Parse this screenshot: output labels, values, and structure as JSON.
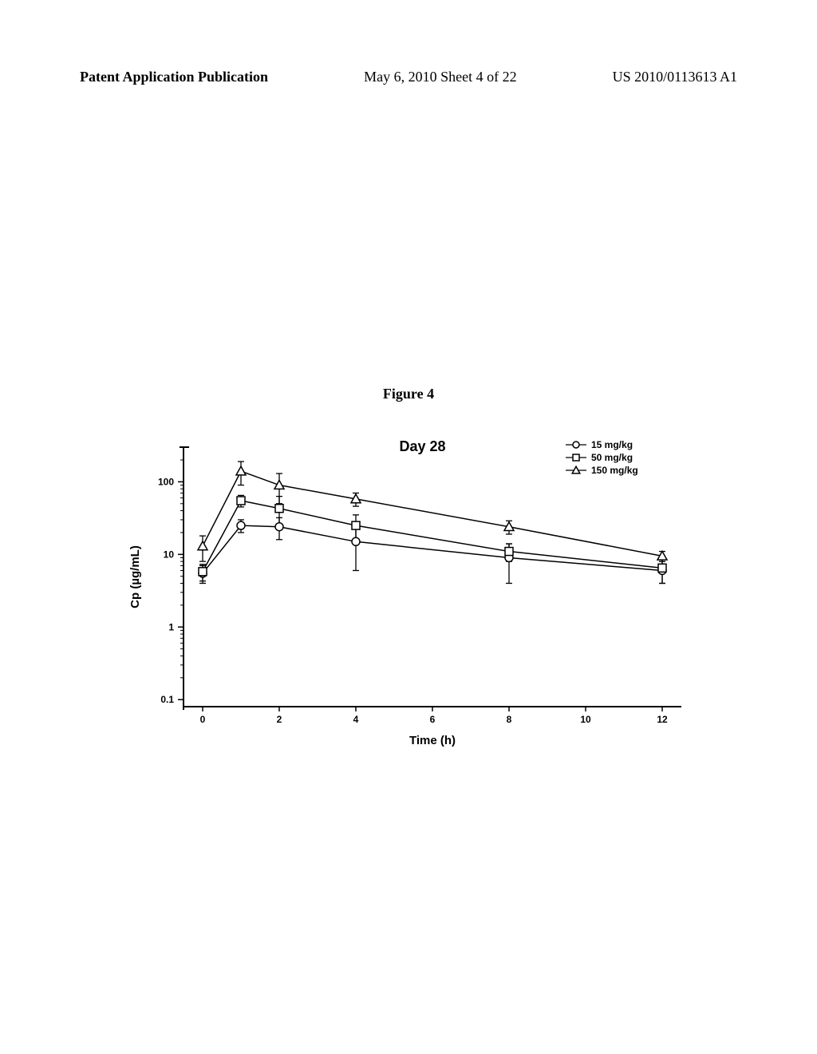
{
  "header": {
    "left": "Patent Application Publication",
    "mid": "May 6, 2010  Sheet 4 of 22",
    "right": "US 2010/0113613 A1"
  },
  "figure_caption": "Figure 4",
  "chart": {
    "type": "line",
    "title": "Day 28",
    "title_fontsize": 18,
    "title_fontweight": "bold",
    "xlabel": "Time  (h)",
    "ylabel": "Cp  (µg/mL)",
    "label_fontsize": 15,
    "label_fontweight": "bold",
    "tick_fontsize": 12,
    "tick_fontweight": "bold",
    "xlim": [
      -0.5,
      12.5
    ],
    "xticks": [
      0,
      2,
      4,
      6,
      8,
      10,
      12
    ],
    "yscale": "log",
    "ylim": [
      0.08,
      300
    ],
    "yticks": [
      0.1,
      1,
      10,
      100
    ],
    "background_color": "#ffffff",
    "axis_color": "#000000",
    "line_color": "#000000",
    "line_width": 1.5,
    "marker_size": 5,
    "legend": {
      "position": "top-right",
      "fontsize": 12,
      "items": [
        {
          "label": "15   mg/kg",
          "marker": "circle"
        },
        {
          "label": "50   mg/kg",
          "marker": "square"
        },
        {
          "label": "150 mg/kg",
          "marker": "triangle"
        }
      ]
    },
    "series": [
      {
        "name": "15 mg/kg",
        "marker": "circle",
        "x": [
          0,
          1,
          2,
          4,
          8,
          12
        ],
        "y": [
          5.5,
          25,
          24,
          15,
          9,
          6.0
        ],
        "yerr": [
          1.5,
          5,
          8,
          9,
          5,
          2.0
        ]
      },
      {
        "name": "50 mg/kg",
        "marker": "square",
        "x": [
          0,
          1,
          2,
          4,
          8,
          12
        ],
        "y": [
          5.8,
          55,
          43,
          25,
          11,
          6.5
        ],
        "yerr": [
          1.5,
          10,
          20,
          10,
          3,
          2.5
        ]
      },
      {
        "name": "150 mg/kg",
        "marker": "triangle",
        "x": [
          0,
          1,
          2,
          4,
          8,
          12
        ],
        "y": [
          13,
          140,
          90,
          58,
          24,
          9.5
        ],
        "yerr": [
          5,
          50,
          40,
          12,
          5,
          1.5
        ]
      }
    ]
  }
}
